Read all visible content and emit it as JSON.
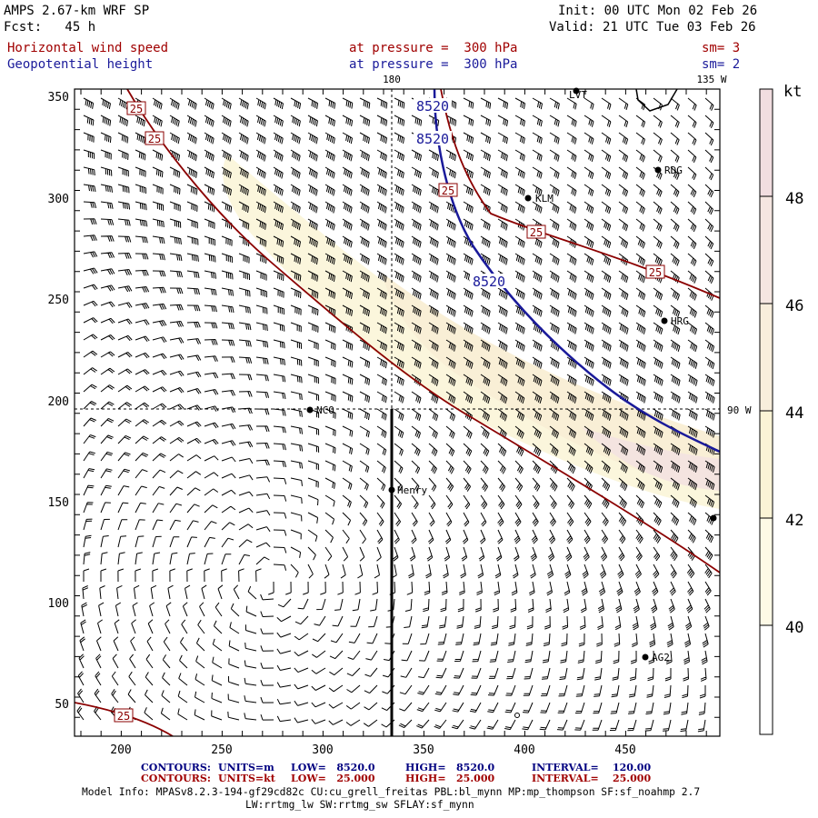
{
  "header": {
    "model": "AMPS 2.67-km WRF SP",
    "fcst": "Fcst:   45 h",
    "init": "Init: 00 UTC Mon 02 Feb 26",
    "valid": "Valid: 21 UTC Tue 03 Feb 26",
    "field1_name": "Horizontal wind speed",
    "field1_level": "at pressure =  300 hPa",
    "field1_sm": "sm= 3",
    "field2_name": "Geopotential height",
    "field2_level": "at pressure =  300 hPa",
    "field2_sm": "sm= 2"
  },
  "map": {
    "top_labels": [
      "180",
      "135 W"
    ],
    "right_labels": [
      "90 W"
    ],
    "y_ticks": [
      "350",
      "300",
      "250",
      "200",
      "150",
      "100",
      "50"
    ],
    "x_ticks": [
      "200",
      "250",
      "300",
      "350",
      "400",
      "450"
    ],
    "height_contour_labels": [
      "8520",
      "8520",
      "8520"
    ],
    "wind_contour_labels": [
      "25",
      "25",
      "25",
      "25",
      "25",
      "25"
    ],
    "stations": [
      {
        "name": "LVT"
      },
      {
        "name": "RDG"
      },
      {
        "name": "KLM"
      },
      {
        "name": "HRG"
      },
      {
        "name": "NCO"
      },
      {
        "name": "Henry"
      },
      {
        "name": "AG2"
      }
    ],
    "colors": {
      "wind_contour": "#8b0000",
      "height_contour": "#000080",
      "shade_44": "#fbf5d8",
      "shade_46": "#f6e8e4",
      "shade_48": "#f1dde0"
    }
  },
  "colorbar": {
    "unit": "kt",
    "labels": [
      "48",
      "46",
      "44",
      "42",
      "40"
    ]
  },
  "footer": {
    "c1_label": "CONTOURS:",
    "c1_units": "UNITS=m",
    "c1_low": "LOW=   8520.0",
    "c1_high": "HIGH=   8520.0",
    "c1_int": "INTERVAL=    120.00",
    "c2_label": "CONTOURS:",
    "c2_units": "UNITS=kt",
    "c2_low": "LOW=   25.000",
    "c2_high": "HIGH=   25.000",
    "c2_int": "INTERVAL=    25.000",
    "model_info": "Model Info: MPASv8.2.3-194-gf29cd82c CU:cu_grell_freitas PBL:bl_mynn MP:mp_thompson SF:sf_noahmp 2.7",
    "model_info2": "LW:rrtmg_lw SW:rrtmg_sw SFLAY:sf_mynn"
  }
}
